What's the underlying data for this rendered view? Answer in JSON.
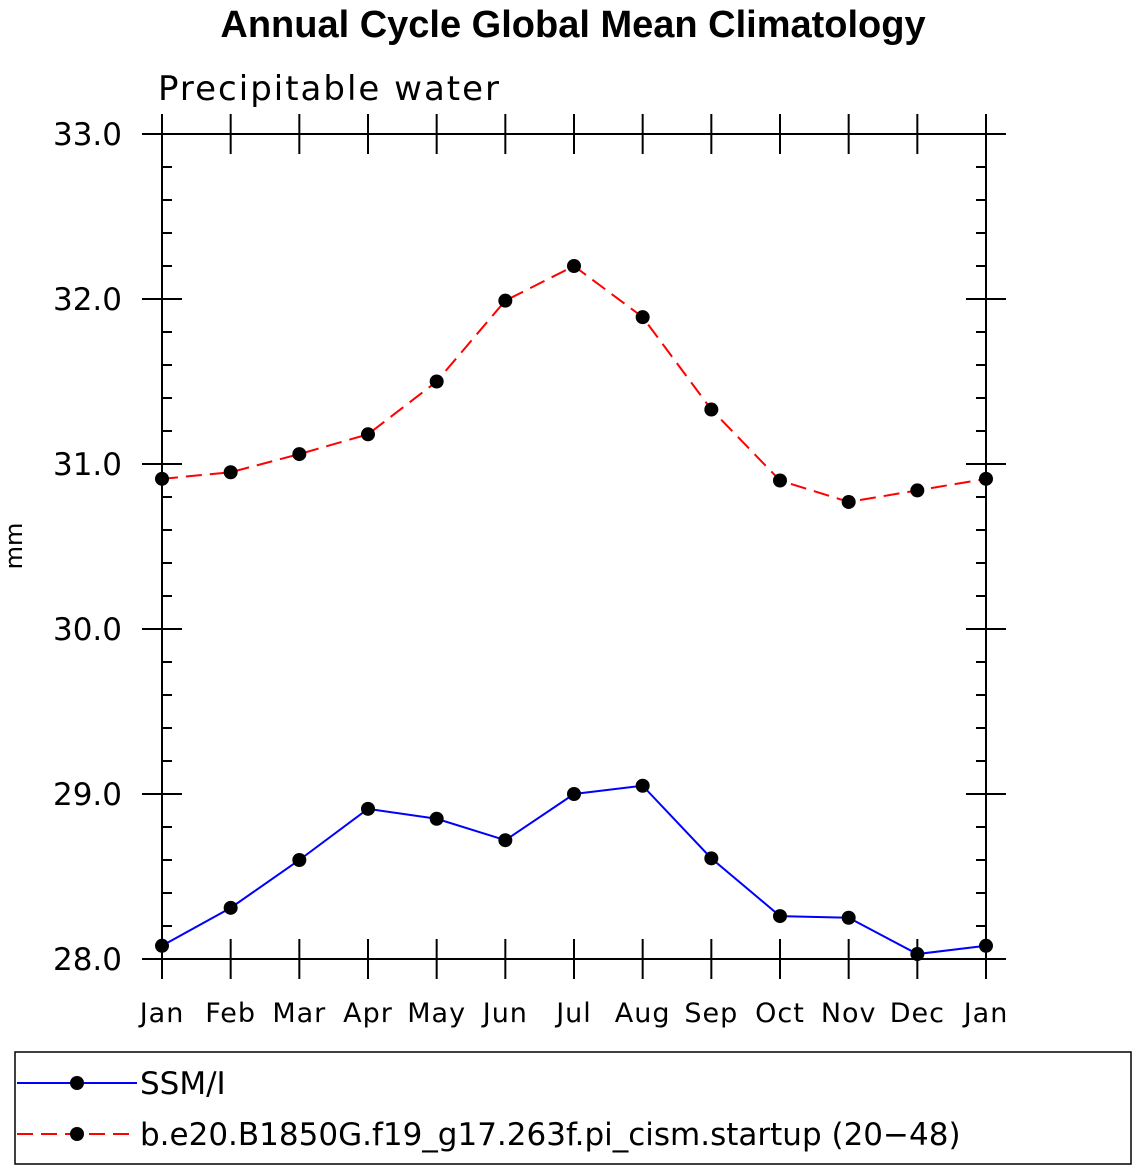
{
  "chart_data": {
    "type": "line",
    "title": "Annual Cycle Global Mean Climatology",
    "subtitle": "Precipitable water",
    "xlabel": "",
    "ylabel": "mm",
    "categories": [
      "Jan",
      "Feb",
      "Mar",
      "Apr",
      "May",
      "Jun",
      "Jul",
      "Aug",
      "Sep",
      "Oct",
      "Nov",
      "Dec",
      "Jan"
    ],
    "ylim": [
      28.0,
      33.0
    ],
    "yticks": [
      "28.0",
      "29.0",
      "30.0",
      "31.0",
      "32.0",
      "33.0"
    ],
    "grid": false,
    "legend_position": "bottom",
    "series": [
      {
        "name": "SSM/I",
        "color": "#0000ff",
        "style": "solid",
        "marker": "dot",
        "values": [
          28.08,
          28.31,
          28.6,
          28.91,
          28.85,
          28.72,
          29.0,
          29.05,
          28.61,
          28.26,
          28.25,
          28.03,
          28.08
        ]
      },
      {
        "name": "b.e20.B1850G.f19_g17.263f.pi_cism.startup (20−48)",
        "color": "#ff0000",
        "style": "dashed",
        "marker": "dot",
        "values": [
          30.91,
          30.95,
          31.06,
          31.18,
          31.5,
          31.99,
          32.2,
          31.89,
          31.33,
          30.9,
          30.77,
          30.84,
          30.91
        ]
      }
    ]
  }
}
